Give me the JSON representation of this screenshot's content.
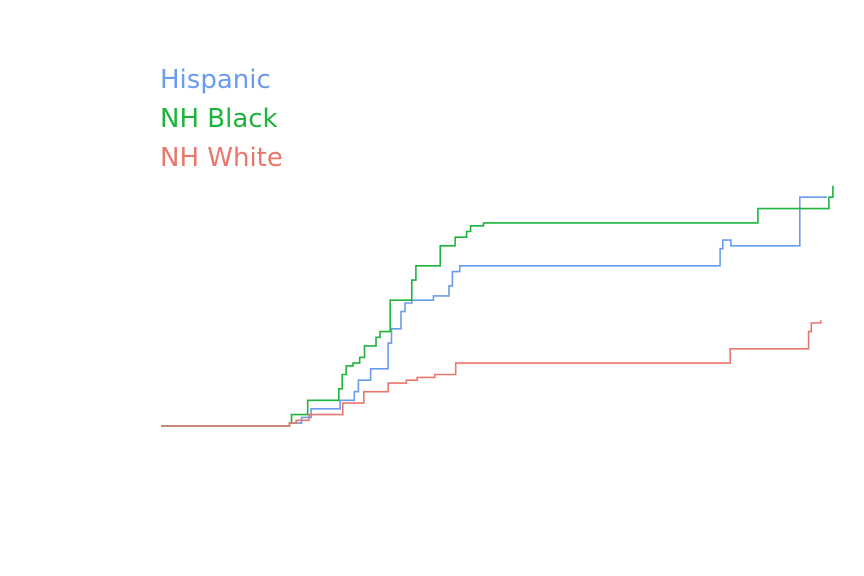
{
  "chart_data": {
    "type": "line",
    "step": true,
    "title": "",
    "xlabel": "",
    "ylabel": "",
    "xlim": [
      0,
      100
    ],
    "ylim": [
      0,
      100
    ],
    "grid": false,
    "legend_position": "top-left",
    "series": [
      {
        "name": "Hispanic",
        "color": "#6b9bef",
        "x": [
          0,
          19,
          20.8,
          22.2,
          26.5,
          28.6,
          29.2,
          31,
          33.6,
          34.1,
          35.5,
          36.1,
          37.1,
          40.3,
          42.3,
          42.6,
          43.1,
          44.2,
          82.5,
          82.7,
          83.1,
          84.3,
          94.5,
          98.5
        ],
        "values": [
          0,
          1,
          3,
          6,
          9,
          12,
          16,
          20,
          29,
          34,
          40,
          43,
          44,
          45.5,
          45.5,
          49,
          54,
          56,
          56,
          62,
          65,
          63,
          80,
          80
        ]
      },
      {
        "name": "NH Black",
        "color": "#1db33c",
        "x": [
          0,
          19,
          19.3,
          21.7,
          26.3,
          26.8,
          27.4,
          28.4,
          29.4,
          30.1,
          31.8,
          32.4,
          33.9,
          37.1,
          37.7,
          41.3,
          43.5,
          45.2,
          45.8,
          47.7,
          83.2,
          88,
          88.3,
          98.8,
          99.4
        ],
        "values": [
          0,
          1,
          4,
          9,
          13,
          18,
          21,
          22,
          24,
          28,
          31,
          33,
          44,
          51,
          56,
          63,
          66,
          68,
          70,
          71,
          71,
          71,
          76,
          80,
          84
        ]
      },
      {
        "name": "NH White",
        "color": "#e8776d",
        "x": [
          0,
          19,
          20,
          21.9,
          26.9,
          30,
          33.6,
          36.3,
          37.9,
          40.5,
          43.6,
          82,
          84.2,
          85.8,
          95.8,
          96.2,
          97.6
        ],
        "values": [
          0,
          1,
          2,
          4,
          8,
          12,
          15,
          16,
          17,
          18,
          22,
          22,
          27,
          27,
          33,
          36,
          37
        ]
      }
    ]
  }
}
